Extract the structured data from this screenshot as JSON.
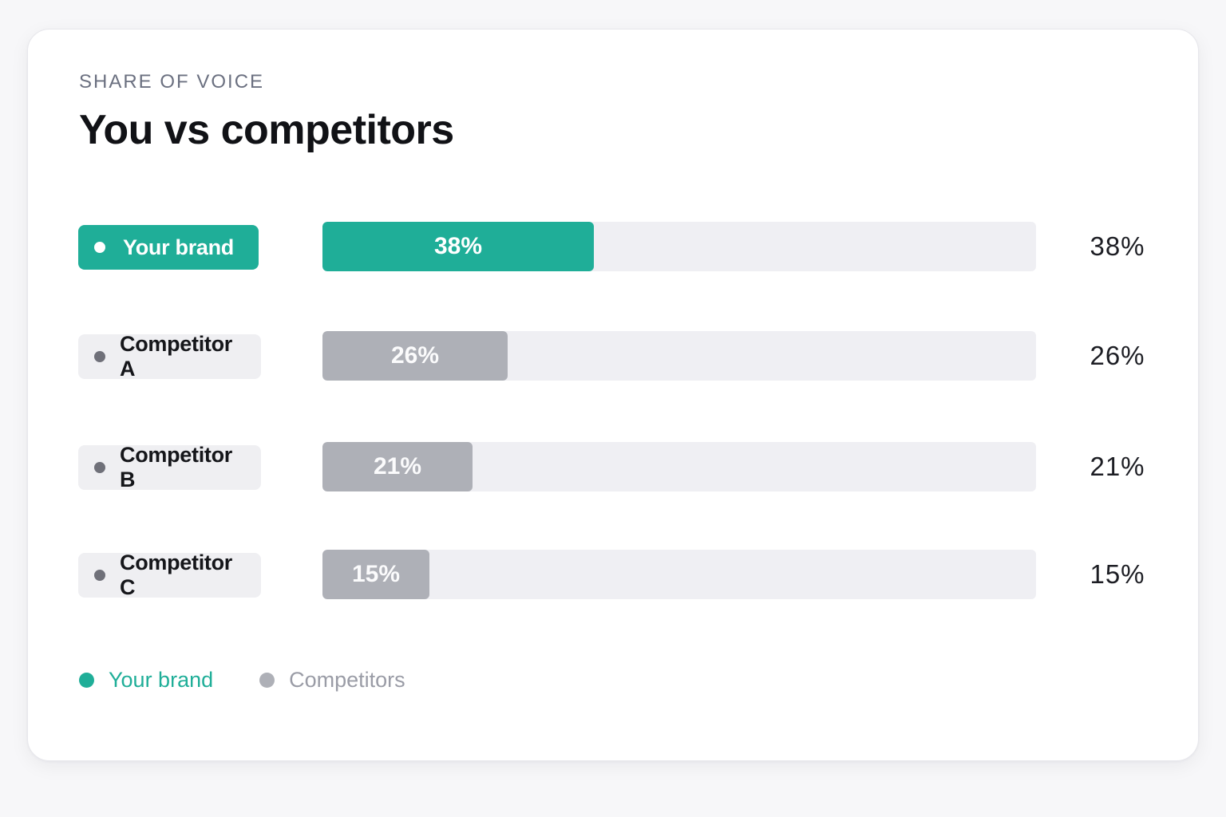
{
  "header": {
    "eyebrow": "SHARE OF VOICE",
    "title": "You vs competitors"
  },
  "colors": {
    "brand": "#1fae98",
    "competitor": "#aeb0b7",
    "track": "#efeff3",
    "legend_competitor_text": "#9a9ca6"
  },
  "legend": {
    "items": [
      {
        "label": "Your brand",
        "color": "#1fae98"
      },
      {
        "label": "Competitors",
        "color": "#aeb0b7"
      }
    ]
  },
  "chart_data": {
    "type": "bar",
    "orientation": "horizontal",
    "title": "You vs competitors",
    "subtitle": "SHARE OF VOICE",
    "xlim": [
      0,
      100
    ],
    "unit": "%",
    "grid": false,
    "legend_position": "bottom-left",
    "categories": [
      "Your brand",
      "Competitor A",
      "Competitor B",
      "Competitor C"
    ],
    "values": [
      38,
      26,
      21,
      15
    ],
    "bar_labels": [
      "38%",
      "26%",
      "21%",
      "15%"
    ],
    "value_labels": [
      "38%",
      "26%",
      "21%",
      "15%"
    ],
    "groups": [
      "brand",
      "competitor",
      "competitor",
      "competitor"
    ]
  }
}
